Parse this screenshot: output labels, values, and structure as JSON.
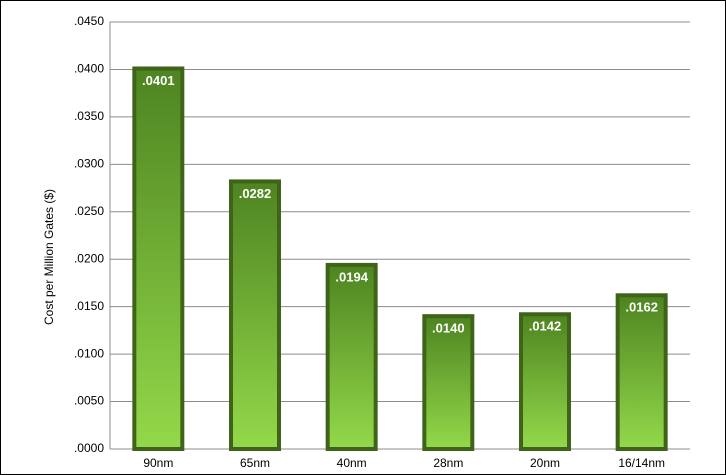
{
  "chart_data": {
    "type": "bar",
    "y_label": "Cost per Million Gates ($)",
    "categories": [
      "90nm",
      "65nm",
      "40nm",
      "28nm",
      "20nm",
      "16/14nm"
    ],
    "values": [
      0.0401,
      0.0282,
      0.0194,
      0.014,
      0.0142,
      0.0162
    ],
    "value_labels": [
      ".0401",
      ".0282",
      ".0194",
      ".0140",
      ".0142",
      ".0162"
    ],
    "color": "#5f9a2a",
    "ylim": [
      0,
      0.045
    ],
    "yticks": [
      {
        "value": 0,
        "label": ".0000"
      },
      {
        "value": 0.005,
        "label": ".0050"
      },
      {
        "value": 0.01,
        "label": ".0100"
      },
      {
        "value": 0.015,
        "label": ".0150"
      },
      {
        "value": 0.02,
        "label": ".0200"
      },
      {
        "value": 0.025,
        "label": ".0250"
      },
      {
        "value": 0.03,
        "label": ".0300"
      },
      {
        "value": 0.035,
        "label": ".0350"
      },
      {
        "value": 0.04,
        "label": ".0400"
      },
      {
        "value": 0.045,
        "label": ".0450"
      }
    ],
    "grid": true
  }
}
